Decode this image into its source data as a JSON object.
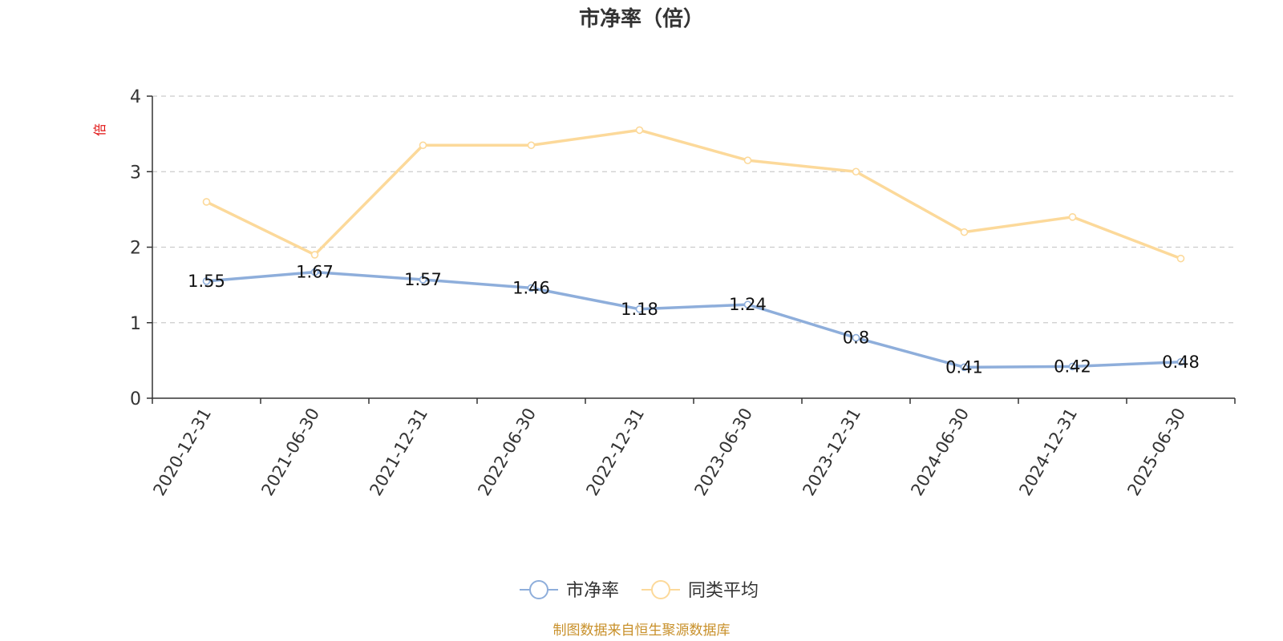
{
  "chart_data": {
    "type": "line",
    "title": "市净率（倍）",
    "ylabel": "倍",
    "xlabel": "",
    "categories": [
      "2020-12-31",
      "2021-06-30",
      "2021-12-31",
      "2022-06-30",
      "2022-12-31",
      "2023-06-30",
      "2023-12-31",
      "2024-06-30",
      "2024-12-31",
      "2025-06-30"
    ],
    "ylim": [
      0,
      4
    ],
    "yticks": [
      "0",
      "1",
      "2",
      "3",
      "4"
    ],
    "grid": true,
    "legend_position": "bottom",
    "series": [
      {
        "name": "市净率",
        "color": "#8eaedb",
        "values": [
          1.55,
          1.67,
          1.57,
          1.46,
          1.18,
          1.24,
          0.8,
          0.41,
          0.42,
          0.48
        ],
        "labels": [
          "1.55",
          "1.67",
          "1.57",
          "1.46",
          "1.18",
          "1.24",
          "0.8",
          "0.41",
          "0.42",
          "0.48"
        ],
        "show_labels": true
      },
      {
        "name": "同类平均",
        "color": "#fcd99a",
        "values": [
          2.6,
          1.9,
          3.35,
          3.35,
          3.55,
          3.15,
          3.0,
          2.2,
          2.4,
          1.85
        ],
        "show_labels": false
      }
    ]
  },
  "footer": "制图数据来自恒生聚源数据库"
}
